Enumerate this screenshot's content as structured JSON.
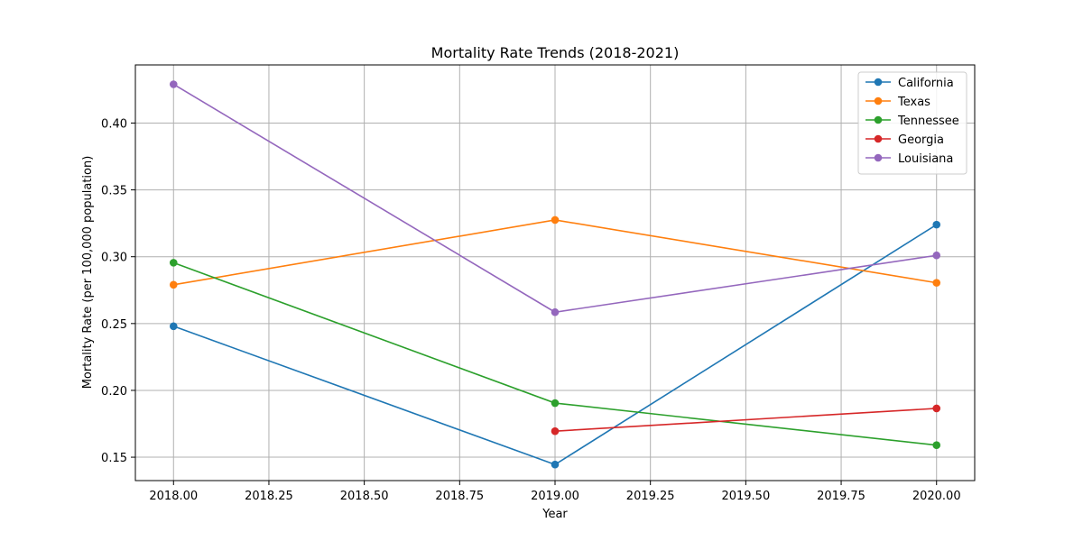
{
  "chart_data": {
    "type": "line",
    "title": "Mortality Rate Trends (2018-2021)",
    "xlabel": "Year",
    "ylabel": "Mortality Rate (per 100,000 population)",
    "xlim": [
      2017.9,
      2020.1
    ],
    "ylim": [
      0.1325,
      0.4435
    ],
    "xticks": [
      2018.0,
      2018.25,
      2018.5,
      2018.75,
      2019.0,
      2019.25,
      2019.5,
      2019.75,
      2020.0
    ],
    "xtick_labels": [
      "2018.00",
      "2018.25",
      "2018.50",
      "2018.75",
      "2019.00",
      "2019.25",
      "2019.50",
      "2019.75",
      "2020.00"
    ],
    "yticks": [
      0.15,
      0.2,
      0.25,
      0.3,
      0.35,
      0.4
    ],
    "ytick_labels": [
      "0.15",
      "0.20",
      "0.25",
      "0.30",
      "0.35",
      "0.40"
    ],
    "grid": true,
    "legend_position": "top-right",
    "series": [
      {
        "name": "California",
        "color": "#1f77b4",
        "x": [
          2018,
          2019,
          2020
        ],
        "y": [
          0.248,
          0.1445,
          0.324
        ]
      },
      {
        "name": "Texas",
        "color": "#ff7f0e",
        "x": [
          2018,
          2019,
          2020
        ],
        "y": [
          0.279,
          0.3275,
          0.2805
        ]
      },
      {
        "name": "Tennessee",
        "color": "#2ca02c",
        "x": [
          2018,
          2019,
          2020
        ],
        "y": [
          0.2955,
          0.1905,
          0.159
        ]
      },
      {
        "name": "Georgia",
        "color": "#d62728",
        "x": [
          2019,
          2020
        ],
        "y": [
          0.1695,
          0.1865
        ]
      },
      {
        "name": "Louisiana",
        "color": "#9467bd",
        "x": [
          2018,
          2019,
          2020
        ],
        "y": [
          0.429,
          0.2585,
          0.301
        ]
      }
    ]
  }
}
